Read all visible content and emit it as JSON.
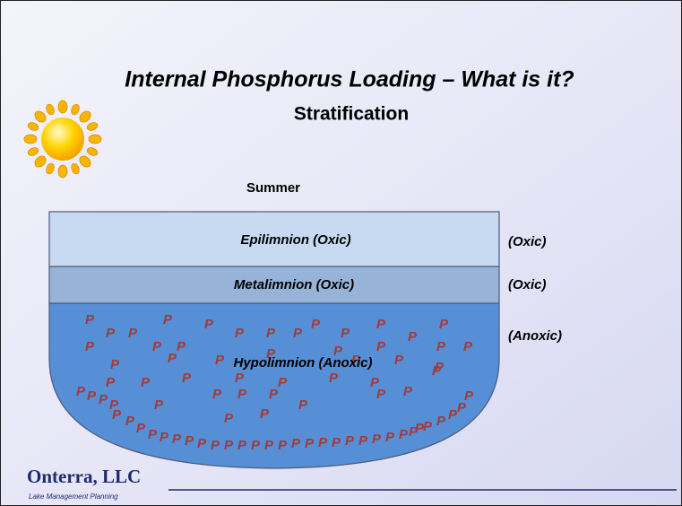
{
  "title": "Internal Phosphorus Loading – What is it?",
  "subtitle": "Stratification",
  "season": "Summer",
  "layers": [
    {
      "label": "Epilimnion (Oxic)",
      "side_label": "(Oxic)"
    },
    {
      "label": "Metalimnion (Oxic)",
      "side_label": "(Oxic)"
    },
    {
      "label": "Hypolimnion (Anoxic)",
      "side_label": "(Anoxic)"
    }
  ],
  "phosphorus_symbol": "P",
  "logo": {
    "name": "Onterra, LLC",
    "tagline": "Lake Management Planning"
  }
}
